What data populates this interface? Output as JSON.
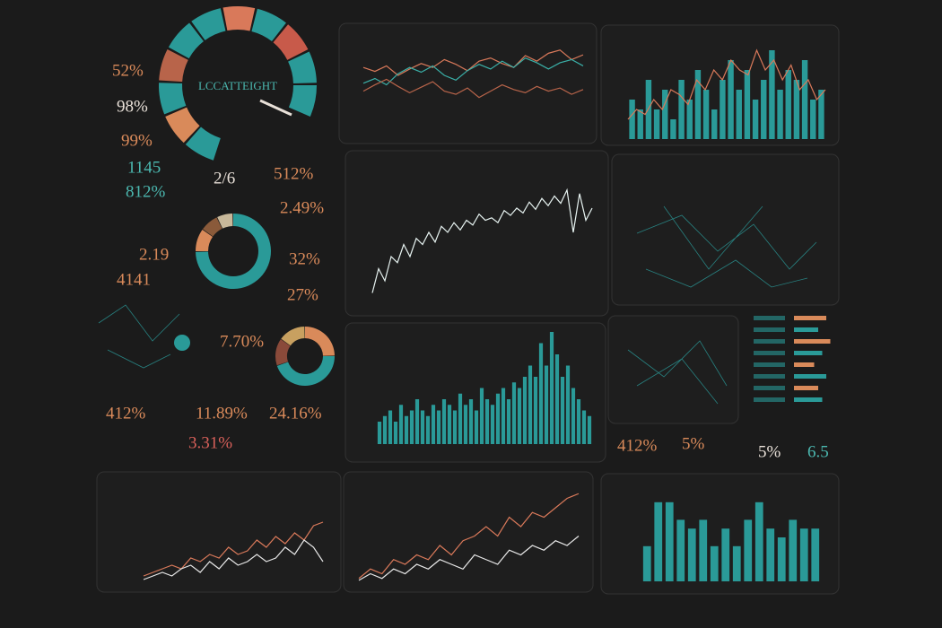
{
  "gauge": {
    "title": "LCCATTEIGHT"
  },
  "stats": [
    "52%",
    "98%",
    "99%",
    "1145",
    "812%",
    "2/6",
    "512%",
    "2.49%",
    "2.19",
    "4141",
    "32%",
    "27%",
    "7.70%",
    "412%",
    "11.89%",
    "24.16%",
    "3.31%",
    "412%",
    "5%",
    "5%",
    "6.5"
  ],
  "donuts": [
    {
      "values": [
        75,
        10,
        8,
        7
      ],
      "colors": [
        "#2a9a98",
        "#d98a5a",
        "#8a5a3a",
        "#c8b89a"
      ]
    },
    {
      "values": [
        25,
        45,
        15,
        15
      ],
      "colors": [
        "#d98a5a",
        "#2a9a98",
        "#8a4a3a",
        "#c8a060"
      ]
    }
  ],
  "charts": [
    {
      "type": "line",
      "ylim": [
        0,
        10
      ],
      "series": [
        {
          "color": "#d9795a",
          "values": [
            6,
            5.5,
            6.2,
            5,
            5.8,
            6.5,
            6,
            7,
            6.4,
            5.6,
            6.8,
            7.2,
            6.5,
            6,
            7.5,
            6.8,
            7.8,
            8.2,
            7,
            7.6
          ]
        },
        {
          "color": "#3ab0a8",
          "values": [
            4,
            4.6,
            3.8,
            5.2,
            6,
            5.4,
            6.2,
            5,
            4.4,
            5.6,
            6.4,
            5.8,
            6.8,
            6,
            7.2,
            6.6,
            5.8,
            6.6,
            7,
            6.2
          ]
        },
        {
          "color": "#b8644a",
          "values": [
            3,
            3.8,
            4.5,
            3.6,
            2.8,
            3.5,
            4.2,
            3,
            2.6,
            3.4,
            2.2,
            3,
            3.8,
            3.2,
            2.8,
            3.6,
            3,
            3.4,
            2.6,
            3.2
          ]
        }
      ]
    },
    {
      "type": "barline",
      "ylim": [
        0,
        10
      ],
      "series": [
        {
          "color": "#2a9a98",
          "values": [
            4,
            3,
            6,
            3,
            5,
            2,
            6,
            4,
            7,
            5,
            3,
            6,
            8,
            5,
            7,
            4,
            6,
            9,
            5,
            7,
            6,
            8,
            4,
            5
          ]
        },
        {
          "color": "#d9795a",
          "values": [
            2,
            3,
            2.5,
            4,
            3,
            5,
            4.5,
            3.5,
            6,
            5,
            7,
            6,
            8,
            7,
            6.5,
            9,
            7,
            8,
            6,
            7.5,
            5,
            6,
            4,
            5
          ]
        }
      ]
    },
    {
      "type": "line",
      "ylim": [
        0,
        10
      ],
      "series": [
        {
          "color": "#e8f4f2",
          "values": [
            1,
            3,
            2,
            4,
            3.5,
            5,
            4,
            5.5,
            5,
            6,
            5.2,
            6.5,
            6,
            6.8,
            6.2,
            7,
            6.6,
            7.5,
            7,
            7.2,
            6.8,
            7.8,
            7.4,
            8,
            7.6,
            8.5,
            7.9,
            8.8,
            8.2,
            9,
            8.4,
            9.5,
            6,
            9.2,
            7,
            8
          ]
        }
      ]
    },
    {
      "type": "bar",
      "ylim": [
        0,
        10
      ],
      "series": [
        {
          "color": "#2a9a98",
          "values": [
            2,
            2.5,
            3,
            2,
            3.5,
            2.5,
            3,
            4,
            3,
            2.5,
            3.5,
            3,
            4,
            3.5,
            3,
            4.5,
            3.5,
            4,
            3,
            5,
            4,
            3.5,
            4.5,
            5,
            4,
            5.5,
            5,
            6,
            7,
            6,
            9,
            7,
            10,
            8,
            6,
            7,
            5,
            4,
            3,
            2.5
          ]
        }
      ]
    },
    {
      "type": "line",
      "ylim": [
        0,
        10
      ],
      "series": [
        {
          "color": "#d9795a",
          "values": [
            1,
            1.5,
            2,
            2.5,
            2,
            3.5,
            3,
            4,
            3.5,
            5,
            4,
            4.5,
            6,
            5,
            6.5,
            5.5,
            7,
            6,
            8,
            8.5
          ]
        },
        {
          "color": "#e8e8e8",
          "values": [
            0.5,
            1,
            1.5,
            1,
            2,
            2.5,
            1.5,
            3,
            2,
            3.5,
            2.5,
            3,
            4,
            3,
            3.5,
            5,
            4,
            6,
            5,
            3
          ]
        }
      ]
    },
    {
      "type": "line",
      "ylim": [
        0,
        10
      ],
      "series": [
        {
          "color": "#d9795a",
          "values": [
            0.5,
            1.5,
            1,
            2.5,
            2,
            3,
            2.5,
            4,
            3,
            4.5,
            5,
            6,
            5,
            7,
            6,
            7.5,
            7,
            8,
            9,
            9.5
          ]
        },
        {
          "color": "#e8e8e8",
          "values": [
            0.3,
            1,
            0.5,
            1.5,
            1,
            2,
            1.5,
            2.5,
            2,
            1.5,
            3,
            2.5,
            2,
            3.5,
            3,
            4,
            3.5,
            4.5,
            4,
            5
          ]
        }
      ]
    },
    {
      "type": "bar",
      "ylim": [
        0,
        10
      ],
      "series": [
        {
          "color": "#2a9a98",
          "values": [
            4,
            9,
            9,
            7,
            6,
            7,
            4,
            6,
            4,
            7,
            9,
            6,
            5,
            7,
            6,
            6
          ]
        }
      ]
    }
  ],
  "rows": [
    8,
    6,
    9,
    7,
    5,
    8,
    6,
    7
  ]
}
